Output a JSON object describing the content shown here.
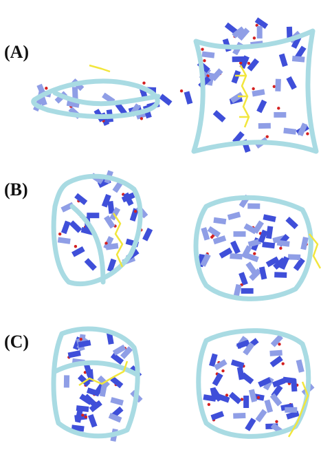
{
  "panels": [
    {
      "label": "(A)"
    },
    {
      "label": "(B)"
    },
    {
      "label": "(C)"
    }
  ]
}
